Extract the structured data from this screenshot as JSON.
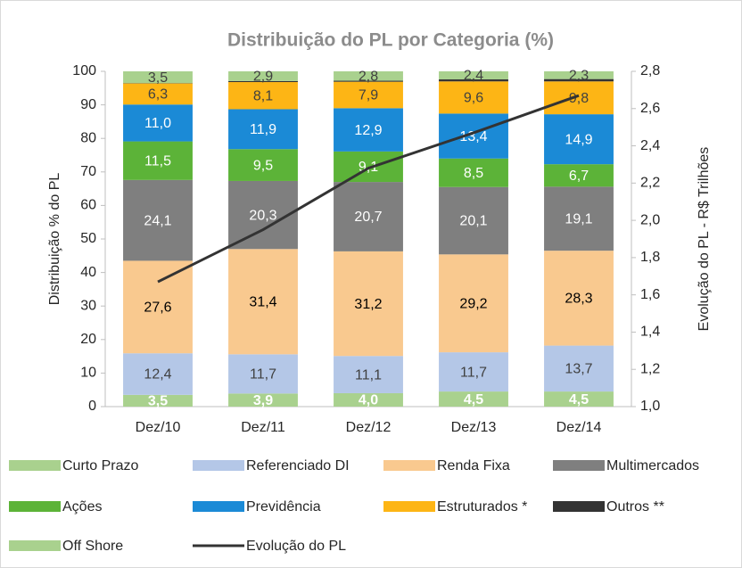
{
  "chart_data": {
    "type": "bar",
    "stacked": true,
    "title": "Distribuição do PL por Categoria (%)",
    "y_label": "Distribuição % do PL",
    "y2_label": "Evolução do PL - R$ Trilhões",
    "categories": [
      "Dez/10",
      "Dez/11",
      "Dez/12",
      "Dez/13",
      "Dez/14"
    ],
    "ylim": [
      0,
      100
    ],
    "yticks": [
      0,
      10,
      20,
      30,
      40,
      50,
      60,
      70,
      80,
      90,
      100
    ],
    "y2lim": [
      1.0,
      2.8
    ],
    "y2ticks": [
      {
        "value": 1.0,
        "label": "1,0"
      },
      {
        "value": 1.2,
        "label": "1,2"
      },
      {
        "value": 1.4,
        "label": "1,4"
      },
      {
        "value": 1.6,
        "label": "1,6"
      },
      {
        "value": 1.8,
        "label": "1,8"
      },
      {
        "value": 2.0,
        "label": "2,0"
      },
      {
        "value": 2.2,
        "label": "2,2"
      },
      {
        "value": 2.4,
        "label": "2,4"
      },
      {
        "value": 2.6,
        "label": "2,6"
      },
      {
        "value": 2.8,
        "label": "2,8"
      }
    ],
    "grid": false,
    "legend": "bottom",
    "series": [
      {
        "name": "Curto Prazo",
        "color": "#a9d18e",
        "label_color": "#ffffff",
        "label_bold": true,
        "values": [
          3.5,
          3.9,
          4.0,
          4.5,
          4.5
        ],
        "value_labels": [
          "3,5",
          "3,9",
          "4,0",
          "4,5",
          "4,5"
        ]
      },
      {
        "name": "Referenciado DI",
        "color": "#b4c7e7",
        "label_color": "#404040",
        "values": [
          12.4,
          11.7,
          11.1,
          11.7,
          13.7
        ],
        "value_labels": [
          "12,4",
          "11,7",
          "11,1",
          "11,7",
          "13,7"
        ]
      },
      {
        "name": "Renda Fixa",
        "color": "#f9c98f",
        "label_color": "#000000",
        "values": [
          27.6,
          31.4,
          31.2,
          29.2,
          28.3
        ],
        "value_labels": [
          "27,6",
          "31,4",
          "31,2",
          "29,2",
          "28,3"
        ]
      },
      {
        "name": "Multimercados",
        "color": "#7f7f7f",
        "label_color": "#ffffff",
        "values": [
          24.1,
          20.3,
          20.7,
          20.1,
          19.1
        ],
        "value_labels": [
          "24,1",
          "20,3",
          "20,7",
          "20,1",
          "19,1"
        ]
      },
      {
        "name": "Ações",
        "color": "#5cb338",
        "label_color": "#ffffff",
        "values": [
          11.5,
          9.5,
          9.1,
          8.5,
          6.7
        ],
        "value_labels": [
          "11,5",
          "9,5",
          "9,1",
          "8,5",
          "6,7"
        ]
      },
      {
        "name": "Previdência",
        "color": "#1b8ad6",
        "label_color": "#ffffff",
        "values": [
          11.0,
          11.9,
          12.9,
          13.4,
          14.9
        ],
        "value_labels": [
          "11,0",
          "11,9",
          "12,9",
          "13,4",
          "14,9"
        ]
      },
      {
        "name": "Estruturados *",
        "color": "#fdb515",
        "label_color": "#404040",
        "values": [
          6.3,
          8.1,
          7.9,
          9.6,
          9.8
        ],
        "value_labels": [
          "6,3",
          "8,1",
          "7,9",
          "9,6",
          "9,8"
        ]
      },
      {
        "name": "Outros **",
        "color": "#333333",
        "values": [
          0.1,
          0.3,
          0.3,
          0.6,
          0.7
        ]
      },
      {
        "name": "Off Shore",
        "color": "#a9d18e",
        "label_color": "#404040",
        "values": [
          3.5,
          2.9,
          2.8,
          2.4,
          2.3
        ],
        "value_labels": [
          "3,5",
          "2,9",
          "2,8",
          "2,4",
          "2,3"
        ]
      },
      {
        "name": "Evolução do PL",
        "type": "line",
        "axis": "y2",
        "color": "#333333",
        "values": [
          1.67,
          1.95,
          2.28,
          2.47,
          2.67
        ]
      }
    ]
  }
}
